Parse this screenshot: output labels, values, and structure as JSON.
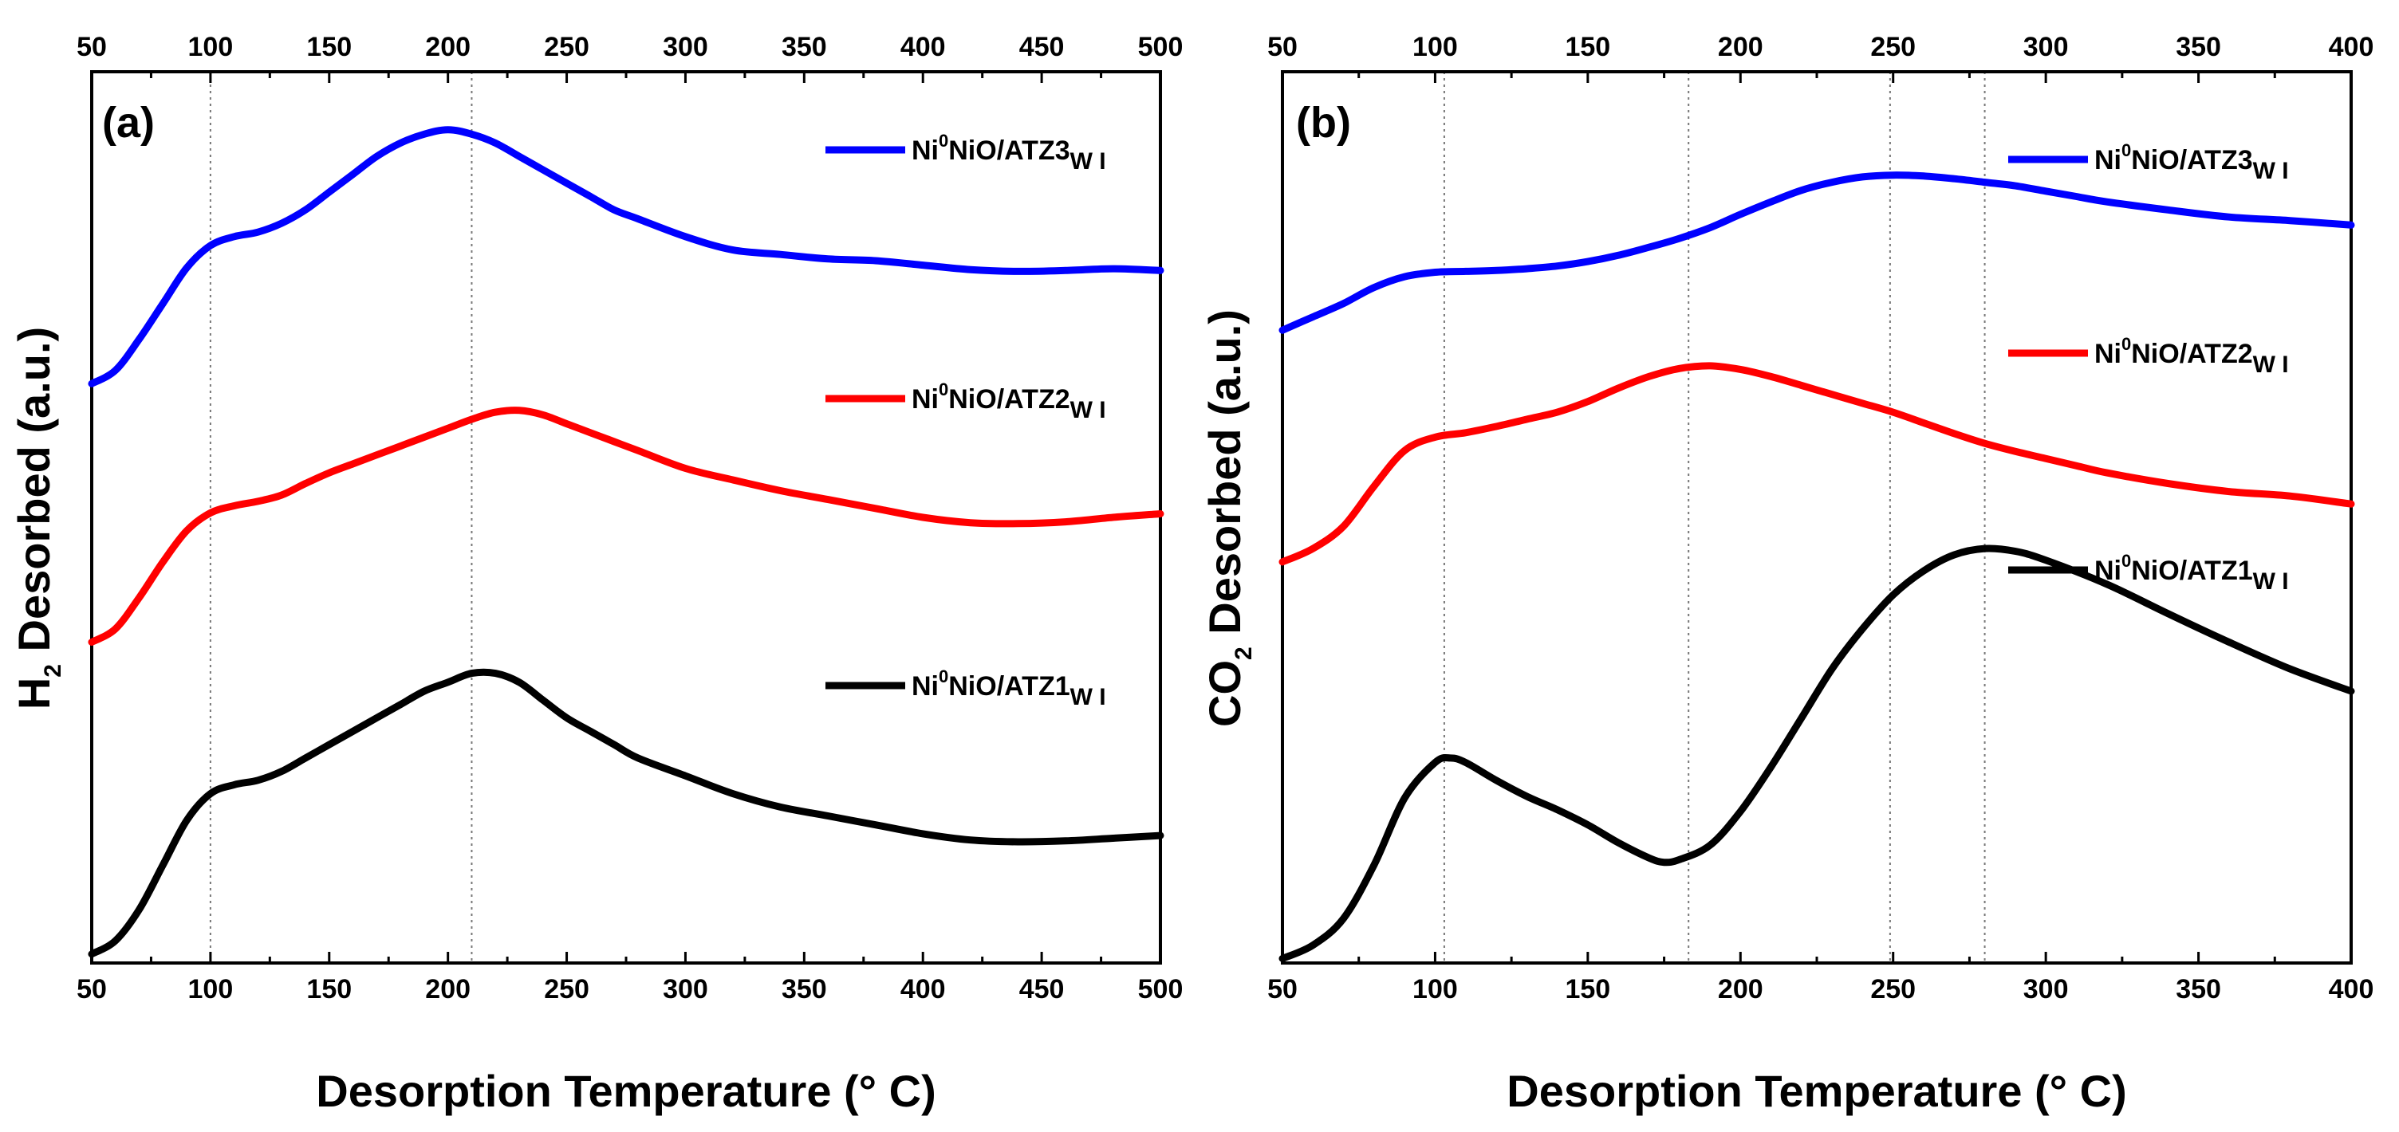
{
  "chart_data": [
    {
      "type": "line",
      "panel_label": "(a)",
      "xlabel": "Desorption Temperature (° C)",
      "ylabel": "H",
      "ylabel_sub": "2",
      "ylabel_rest": " Desorbed (a.u.)",
      "xlim": [
        50,
        500
      ],
      "ylim": [
        0,
        100
      ],
      "x_ticks": [
        "50",
        "100",
        "150",
        "200",
        "250",
        "300",
        "350",
        "400",
        "450",
        "500"
      ],
      "x_tick_values": [
        50,
        100,
        150,
        200,
        250,
        300,
        350,
        400,
        450,
        500
      ],
      "reference_lines": [
        100,
        210
      ],
      "legend_position": "right",
      "series": [
        {
          "name_prefix": "Ni",
          "name_sup": "0",
          "name_main": "NiO/ATZ3",
          "name_sub": "W I",
          "color": "#0000ff",
          "x": [
            50,
            60,
            70,
            80,
            90,
            100,
            110,
            120,
            130,
            140,
            150,
            160,
            170,
            180,
            190,
            200,
            210,
            220,
            230,
            240,
            250,
            260,
            270,
            280,
            300,
            320,
            340,
            360,
            380,
            400,
            420,
            440,
            460,
            480,
            500
          ],
          "y": [
            65,
            66.5,
            70,
            74,
            78,
            80.5,
            81.5,
            82,
            83,
            84.5,
            86.5,
            88.5,
            90.5,
            92,
            93,
            93.5,
            93,
            92,
            90.5,
            89,
            87.5,
            86,
            84.5,
            83.5,
            81.5,
            80,
            79.5,
            79,
            78.8,
            78.3,
            77.8,
            77.6,
            77.7,
            77.9,
            77.7
          ]
        },
        {
          "name_prefix": "Ni",
          "name_sup": "0",
          "name_main": "NiO/ATZ2",
          "name_sub": "W I",
          "color": "#ff0000",
          "x": [
            50,
            60,
            70,
            80,
            90,
            100,
            110,
            120,
            130,
            140,
            150,
            160,
            170,
            180,
            190,
            200,
            210,
            220,
            230,
            240,
            250,
            260,
            270,
            280,
            300,
            320,
            340,
            360,
            380,
            400,
            420,
            440,
            460,
            480,
            500
          ],
          "y": [
            36,
            37.5,
            41,
            45,
            48.5,
            50.5,
            51.3,
            51.8,
            52.5,
            53.8,
            55,
            56,
            57,
            58,
            59,
            60,
            61,
            61.8,
            62,
            61.5,
            60.5,
            59.5,
            58.5,
            57.5,
            55.5,
            54.2,
            53,
            52,
            51,
            50,
            49.4,
            49.3,
            49.5,
            50,
            50.4
          ]
        },
        {
          "name_prefix": "Ni",
          "name_sup": "0",
          "name_main": "NiO/ATZ1",
          "name_sub": "W I",
          "color": "#000000",
          "x": [
            50,
            60,
            70,
            80,
            90,
            100,
            110,
            120,
            130,
            140,
            150,
            160,
            170,
            180,
            190,
            200,
            210,
            220,
            230,
            240,
            250,
            260,
            270,
            280,
            300,
            320,
            340,
            360,
            380,
            400,
            420,
            440,
            460,
            480,
            500
          ],
          "y": [
            1,
            2.5,
            6,
            11,
            16,
            19,
            20,
            20.5,
            21.5,
            23,
            24.5,
            26,
            27.5,
            29,
            30.5,
            31.5,
            32.5,
            32.5,
            31.5,
            29.5,
            27.5,
            26,
            24.5,
            23,
            21,
            19,
            17.5,
            16.5,
            15.5,
            14.5,
            13.8,
            13.6,
            13.7,
            14,
            14.3
          ]
        }
      ]
    },
    {
      "type": "line",
      "panel_label": "(b)",
      "xlabel": "Desorption Temperature (° C)",
      "ylabel": "CO",
      "ylabel_sub": "2",
      "ylabel_rest": " Desorbed (a.u.)",
      "xlim": [
        50,
        400
      ],
      "ylim": [
        0,
        100
      ],
      "x_ticks": [
        "50",
        "100",
        "150",
        "200",
        "250",
        "300",
        "350",
        "400"
      ],
      "x_tick_values": [
        50,
        100,
        150,
        200,
        250,
        300,
        350,
        400
      ],
      "reference_lines": [
        103,
        183,
        249,
        280
      ],
      "legend_position": "right",
      "series": [
        {
          "name_prefix": "Ni",
          "name_sup": "0",
          "name_main": "NiO/ATZ3",
          "name_sub": "W I",
          "color": "#0000ff",
          "x": [
            50,
            60,
            70,
            80,
            90,
            100,
            110,
            120,
            130,
            140,
            150,
            160,
            170,
            180,
            190,
            200,
            210,
            220,
            230,
            240,
            250,
            260,
            270,
            280,
            290,
            300,
            310,
            320,
            340,
            360,
            380,
            400
          ],
          "y": [
            71,
            72.5,
            74,
            75.8,
            77,
            77.5,
            77.6,
            77.7,
            77.9,
            78.2,
            78.7,
            79.4,
            80.3,
            81.3,
            82.5,
            84,
            85.4,
            86.7,
            87.6,
            88.2,
            88.4,
            88.3,
            88,
            87.6,
            87.2,
            86.6,
            86,
            85.4,
            84.5,
            83.7,
            83.3,
            82.8
          ]
        },
        {
          "name_prefix": "Ni",
          "name_sup": "0",
          "name_main": "NiO/ATZ2",
          "name_sub": "W I",
          "color": "#ff0000",
          "x": [
            50,
            60,
            70,
            80,
            90,
            100,
            110,
            120,
            130,
            140,
            150,
            160,
            170,
            180,
            190,
            200,
            210,
            220,
            230,
            240,
            250,
            260,
            270,
            280,
            290,
            300,
            310,
            320,
            340,
            360,
            380,
            400
          ],
          "y": [
            45,
            46.5,
            49,
            53.5,
            57.5,
            59,
            59.5,
            60.2,
            61,
            61.8,
            63,
            64.5,
            65.8,
            66.7,
            67,
            66.6,
            65.8,
            64.8,
            63.8,
            62.8,
            61.8,
            60.6,
            59.4,
            58.3,
            57.4,
            56.6,
            55.8,
            55,
            53.8,
            52.9,
            52.4,
            51.5
          ]
        },
        {
          "name_prefix": "Ni",
          "name_sup": "0",
          "name_main": "NiO/ATZ1",
          "name_sub": "W I",
          "color": "#000000",
          "x": [
            50,
            60,
            70,
            80,
            90,
            100,
            105,
            110,
            120,
            130,
            140,
            150,
            160,
            170,
            175,
            180,
            190,
            200,
            210,
            220,
            230,
            240,
            250,
            260,
            270,
            280,
            290,
            300,
            320,
            340,
            360,
            380,
            400
          ],
          "y": [
            0.5,
            2,
            5,
            11,
            18.5,
            22.5,
            23,
            22.5,
            20.5,
            18.7,
            17.2,
            15.5,
            13.5,
            11.8,
            11.3,
            11.6,
            13.2,
            17,
            22,
            27.5,
            33,
            37.5,
            41.3,
            44,
            45.8,
            46.5,
            46.2,
            45.2,
            42.5,
            39.2,
            36,
            33,
            30.5
          ]
        }
      ]
    }
  ]
}
